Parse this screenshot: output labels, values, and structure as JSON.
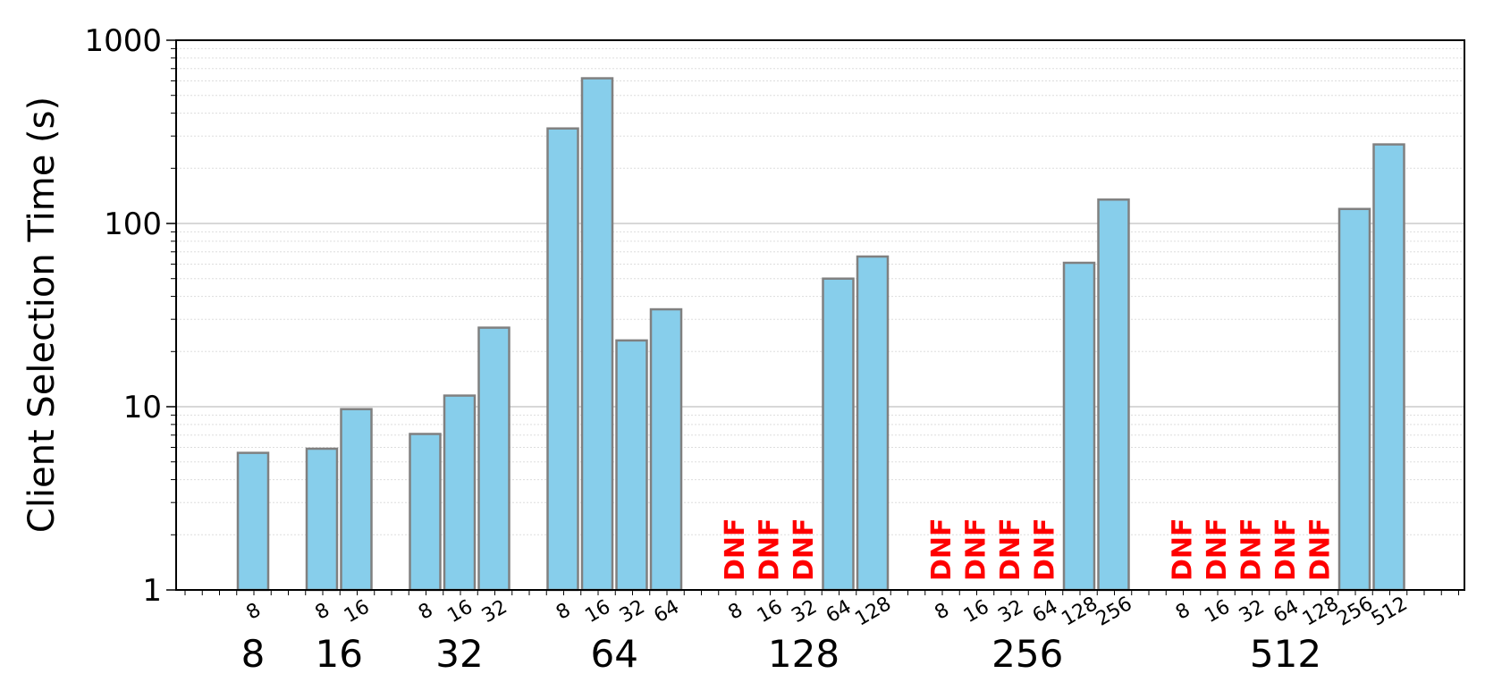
{
  "chart_data": {
    "type": "bar",
    "y_label": "Client Selection Time (s)",
    "log_scale": true,
    "grid": true,
    "ylim": [
      1,
      1000
    ],
    "yticks": [
      1,
      10,
      100,
      1000
    ],
    "color": "#87ceeb",
    "edge_color": "#808080",
    "label_color": "#ff0000",
    "groups": [
      {
        "label": "8",
        "categories": [
          "8"
        ],
        "values": [
          5.6
        ],
        "value_labels": [
          null
        ]
      },
      {
        "label": "16",
        "categories": [
          "8",
          "16"
        ],
        "values": [
          5.9,
          9.7
        ],
        "value_labels": [
          null,
          null
        ]
      },
      {
        "label": "32",
        "categories": [
          "8",
          "16",
          "32"
        ],
        "values": [
          7.1,
          11.5,
          27
        ],
        "value_labels": [
          null,
          null,
          null
        ]
      },
      {
        "label": "64",
        "categories": [
          "8",
          "16",
          "32",
          "64"
        ],
        "values": [
          330,
          620,
          23,
          34
        ],
        "value_labels": [
          null,
          null,
          null,
          null
        ]
      },
      {
        "label": "128",
        "categories": [
          "8",
          "16",
          "32",
          "64",
          "128"
        ],
        "values": [
          null,
          null,
          null,
          50,
          66
        ],
        "value_labels": [
          "DNF",
          "DNF",
          "DNF",
          null,
          null
        ]
      },
      {
        "label": "256",
        "categories": [
          "8",
          "16",
          "32",
          "64",
          "128",
          "256"
        ],
        "values": [
          null,
          null,
          null,
          null,
          61,
          135
        ],
        "value_labels": [
          "DNF",
          "DNF",
          "DNF",
          "DNF",
          null,
          null
        ]
      },
      {
        "label": "512",
        "categories": [
          "8",
          "16",
          "32",
          "64",
          "128",
          "256",
          "512"
        ],
        "values": [
          null,
          null,
          null,
          null,
          null,
          120,
          270
        ],
        "value_labels": [
          "DNF",
          "DNF",
          "DNF",
          "DNF",
          "DNF",
          null,
          null
        ]
      }
    ]
  }
}
